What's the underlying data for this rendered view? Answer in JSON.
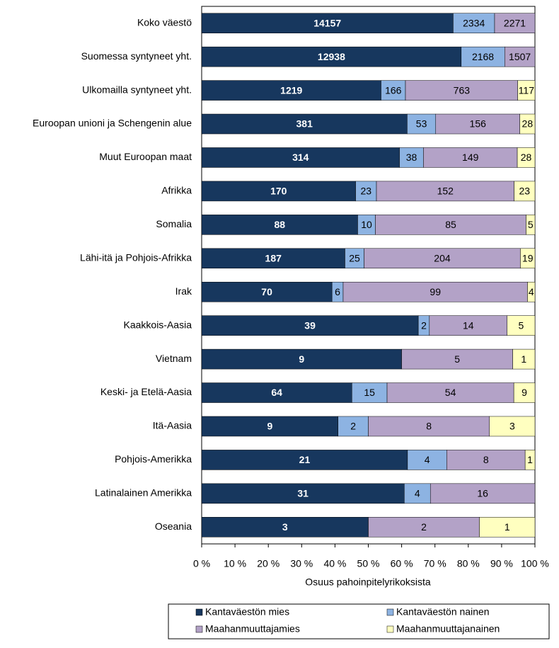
{
  "chart_data": {
    "type": "bar",
    "orientation": "horizontal",
    "stacked": "percent",
    "x_label": "Osuus pahoinpitelyrikoksista",
    "categories": [
      "Koko väestö",
      "Suomessa syntyneet yht.",
      "Ulkomailla syntyneet yht.",
      "Euroopan unioni ja Schengenin alue",
      "Muut Euroopan maat",
      "Afrikka",
      "Somalia",
      "Lähi-itä ja Pohjois-Afrikka",
      "Irak",
      "Kaakkois-Aasia",
      "Vietnam",
      "Keski- ja Etelä-Aasia",
      "Itä-Aasia",
      "Pohjois-Amerikka",
      "Latinalainen Amerikka",
      "Oseania"
    ],
    "series": [
      {
        "name": "Kantaväestön mies",
        "color": "#17375e",
        "label_color": "#ffffff",
        "values": [
          14157,
          12938,
          1219,
          381,
          314,
          170,
          88,
          187,
          70,
          39,
          9,
          64,
          9,
          21,
          31,
          3
        ]
      },
      {
        "name": "Kantaväestön nainen",
        "color": "#8db3e2",
        "label_color": "#000000",
        "values": [
          2334,
          2168,
          166,
          53,
          38,
          23,
          10,
          25,
          6,
          2,
          null,
          15,
          2,
          4,
          4,
          null
        ]
      },
      {
        "name": "Maahanmuuttajamies",
        "color": "#b3a2c7",
        "label_color": "#000000",
        "values": [
          2271,
          1507,
          763,
          156,
          149,
          152,
          85,
          204,
          99,
          14,
          5,
          54,
          8,
          8,
          16,
          2
        ]
      },
      {
        "name": "Maahanmuuttajanainen",
        "color": "#ffffc0",
        "label_color": "#000000",
        "values": [
          null,
          null,
          117,
          28,
          28,
          23,
          5,
          19,
          4,
          5,
          1,
          9,
          3,
          1,
          null,
          1
        ]
      }
    ],
    "xlim": [
      0,
      100
    ],
    "xticks": [
      {
        "value": 0,
        "label": "0 %"
      },
      {
        "value": 10,
        "label": "10 %"
      },
      {
        "value": 20,
        "label": "20 %"
      },
      {
        "value": 30,
        "label": "30 %"
      },
      {
        "value": 40,
        "label": "40 %"
      },
      {
        "value": 50,
        "label": "50 %"
      },
      {
        "value": 60,
        "label": "60 %"
      },
      {
        "value": 70,
        "label": "70 %"
      },
      {
        "value": 80,
        "label": "80 %"
      },
      {
        "value": 90,
        "label": "90 %"
      },
      {
        "value": 100,
        "label": "100 %"
      }
    ]
  }
}
